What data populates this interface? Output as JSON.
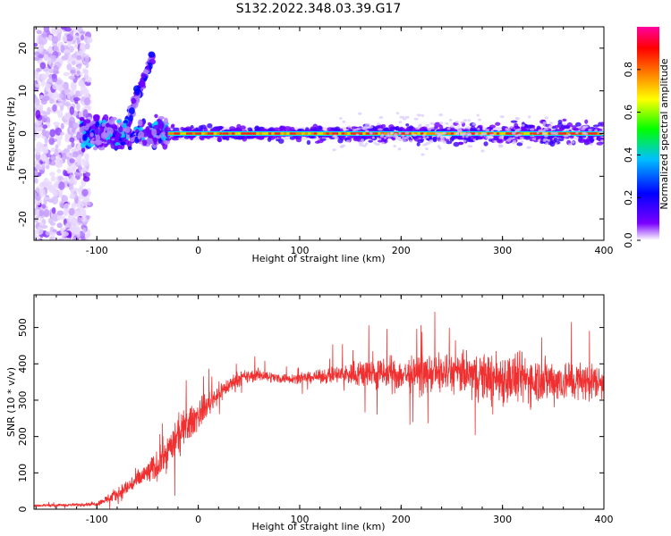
{
  "title": "S132.2022.348.03.39.G17",
  "chart_data": [
    {
      "type": "heatmap",
      "xlabel": "Height of straight line (km)",
      "ylabel": "Frequency (Hz)",
      "xlim": [
        -162,
        400
      ],
      "ylim": [
        -25,
        25
      ],
      "x_ticks": [
        "-100",
        "0",
        "100",
        "200",
        "300",
        "400"
      ],
      "y_ticks": [
        "-20",
        "-10",
        "0",
        "10",
        "20"
      ],
      "colorbar": {
        "label": "Normalized spectral amplitude",
        "range": [
          0,
          1
        ],
        "ticks": [
          "0.0",
          "0.2",
          "0.4",
          "0.6",
          "0.8"
        ],
        "colors": [
          "#ffffff",
          "#7a00ff",
          "#0000ff",
          "#00c0ff",
          "#00ff00",
          "#ffff00",
          "#ff8000",
          "#ff0000",
          "#ff00a0"
        ]
      },
      "signal": {
        "stable_frequency_hz": 0,
        "noise_region_km": [
          -162,
          -115
        ],
        "transition_region_km": [
          -115,
          -30
        ],
        "stable_region_km": [
          -30,
          400
        ]
      }
    },
    {
      "type": "line",
      "xlabel": "Height of straight line (km)",
      "ylabel": "SNR (10 * v/v)",
      "xlim": [
        -162,
        400
      ],
      "ylim": [
        0,
        590
      ],
      "x_ticks": [
        "-100",
        "0",
        "100",
        "200",
        "300",
        "400"
      ],
      "y_ticks": [
        "0",
        "100",
        "200",
        "300",
        "400",
        "500"
      ],
      "series_color": "#f03030",
      "series": [
        {
          "x": [
            -162,
            -120,
            -100,
            -80,
            -60,
            -40,
            -20,
            0,
            20,
            40,
            60,
            80,
            100,
            120,
            140,
            160,
            200,
            250,
            300,
            350,
            400
          ],
          "y": [
            10,
            12,
            15,
            40,
            80,
            120,
            200,
            260,
            320,
            360,
            370,
            360,
            360,
            365,
            370,
            375,
            370,
            375,
            360,
            355,
            350
          ],
          "spread": [
            5,
            6,
            8,
            30,
            40,
            60,
            80,
            60,
            40,
            30,
            25,
            20,
            20,
            25,
            40,
            60,
            70,
            80,
            110,
            90,
            70
          ]
        }
      ]
    }
  ]
}
